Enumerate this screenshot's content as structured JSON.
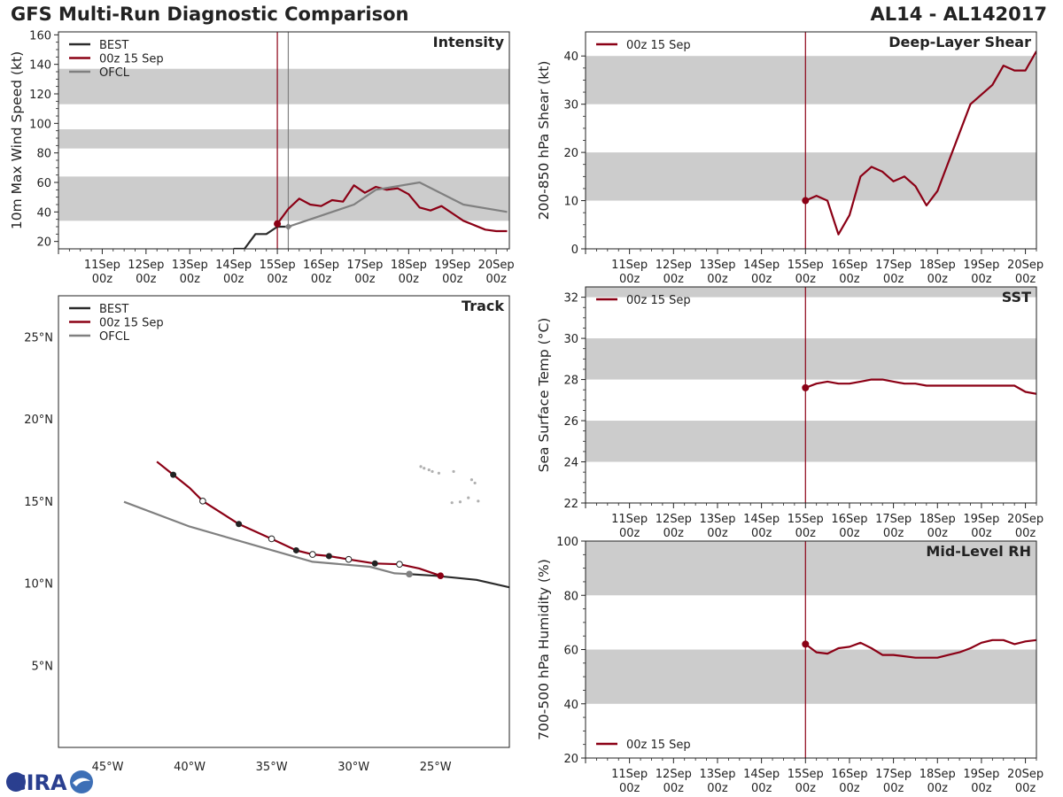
{
  "title_left": "GFS Multi-Run Diagnostic Comparison",
  "title_right": "AL14 - AL142017",
  "logo_text": "CIRA",
  "colors": {
    "best": "#2b2b2b",
    "run": "#8b0015",
    "ofcl": "#808080",
    "band": "#cccccc",
    "vline": "#8b0015",
    "vline_ofcl": "#808080"
  },
  "time_ticks": [
    {
      "day": "11Sep",
      "hour": "00z"
    },
    {
      "day": "12Sep",
      "hour": "00z"
    },
    {
      "day": "13Sep",
      "hour": "00z"
    },
    {
      "day": "14Sep",
      "hour": "00z"
    },
    {
      "day": "15Sep",
      "hour": "00z"
    },
    {
      "day": "16Sep",
      "hour": "00z"
    },
    {
      "day": "17Sep",
      "hour": "00z"
    },
    {
      "day": "18Sep",
      "hour": "00z"
    },
    {
      "day": "19Sep",
      "hour": "00z"
    },
    {
      "day": "20Sep",
      "hour": "00z"
    }
  ],
  "chart_data": [
    {
      "id": "intensity",
      "type": "line",
      "panel_title": "Intensity",
      "ylabel": "10m Max Wind Speed (kt)",
      "xlim": [
        10,
        20.3
      ],
      "ylim": [
        15,
        162
      ],
      "yticks": [
        20,
        40,
        60,
        80,
        100,
        120,
        140,
        160
      ],
      "bands": [
        [
          34,
          64
        ],
        [
          83,
          96
        ],
        [
          113,
          137
        ]
      ],
      "vlines": [
        {
          "x": 15.0,
          "color": "run"
        },
        {
          "x": 15.25,
          "color": "ofcl"
        }
      ],
      "legend": [
        {
          "label": "BEST",
          "color": "best"
        },
        {
          "label": "00z 15 Sep",
          "color": "run"
        },
        {
          "label": "OFCL",
          "color": "ofcl"
        }
      ],
      "series": [
        {
          "name": "BEST",
          "color": "best",
          "points": [
            [
              14.0,
              15
            ],
            [
              14.25,
              15
            ],
            [
              14.5,
              25
            ],
            [
              14.75,
              25
            ],
            [
              15.0,
              30
            ],
            [
              15.25,
              30
            ]
          ]
        },
        {
          "name": "00z 15 Sep",
          "color": "run",
          "points": [
            [
              15.0,
              32
            ],
            [
              15.25,
              42
            ],
            [
              15.5,
              49
            ],
            [
              15.75,
              45
            ],
            [
              16.0,
              44
            ],
            [
              16.25,
              48
            ],
            [
              16.5,
              47
            ],
            [
              16.75,
              58
            ],
            [
              17.0,
              53
            ],
            [
              17.25,
              57
            ],
            [
              17.5,
              55
            ],
            [
              17.75,
              56
            ],
            [
              18.0,
              52
            ],
            [
              18.25,
              43
            ],
            [
              18.5,
              41
            ],
            [
              18.75,
              44
            ],
            [
              19.0,
              39
            ],
            [
              19.25,
              34
            ],
            [
              19.5,
              31
            ],
            [
              19.75,
              28
            ],
            [
              20.0,
              27
            ],
            [
              20.25,
              27
            ]
          ]
        },
        {
          "name": "OFCL",
          "color": "ofcl",
          "points": [
            [
              15.25,
              30
            ],
            [
              15.75,
              35
            ],
            [
              16.75,
              45
            ],
            [
              17.25,
              55
            ],
            [
              18.25,
              60
            ],
            [
              19.25,
              45
            ],
            [
              20.25,
              40
            ]
          ]
        }
      ],
      "markers": [
        {
          "x": 15.0,
          "y": 32,
          "color": "run"
        },
        {
          "x": 15.25,
          "y": 30,
          "color": "ofcl",
          "shape": "diamond"
        }
      ]
    },
    {
      "id": "shear",
      "type": "line",
      "panel_title": "Deep-Layer Shear",
      "ylabel": "200-850 hPa Shear (kt)",
      "xlim": [
        10,
        20.25
      ],
      "ylim": [
        0,
        45
      ],
      "yticks": [
        0,
        10,
        20,
        30,
        40
      ],
      "bands": [
        [
          10,
          20
        ],
        [
          30,
          40
        ]
      ],
      "vlines": [
        {
          "x": 15.0,
          "color": "run"
        }
      ],
      "legend": [
        {
          "label": "00z 15 Sep",
          "color": "run"
        }
      ],
      "series": [
        {
          "name": "00z 15 Sep",
          "color": "run",
          "points": [
            [
              15.0,
              10
            ],
            [
              15.25,
              11
            ],
            [
              15.5,
              10
            ],
            [
              15.75,
              3
            ],
            [
              16.0,
              7
            ],
            [
              16.25,
              15
            ],
            [
              16.5,
              17
            ],
            [
              16.75,
              16
            ],
            [
              17.0,
              14
            ],
            [
              17.25,
              15
            ],
            [
              17.5,
              13
            ],
            [
              17.75,
              9
            ],
            [
              18.0,
              12
            ],
            [
              18.25,
              18
            ],
            [
              18.5,
              24
            ],
            [
              18.75,
              30
            ],
            [
              19.0,
              32
            ],
            [
              19.25,
              34
            ],
            [
              19.5,
              38
            ],
            [
              19.75,
              37
            ],
            [
              20.0,
              37
            ],
            [
              20.25,
              41
            ]
          ]
        }
      ],
      "markers": [
        {
          "x": 15.0,
          "y": 10,
          "color": "run"
        }
      ]
    },
    {
      "id": "sst",
      "type": "line",
      "panel_title": "SST",
      "ylabel": "Sea Surface Temp (°C)",
      "xlim": [
        10,
        20.25
      ],
      "ylim": [
        22,
        32.5
      ],
      "yticks": [
        22,
        24,
        26,
        28,
        30,
        32
      ],
      "bands": [
        [
          24,
          26
        ],
        [
          28,
          30
        ],
        [
          32,
          32.5
        ]
      ],
      "vlines": [
        {
          "x": 15.0,
          "color": "run"
        }
      ],
      "legend": [
        {
          "label": "00z 15 Sep",
          "color": "run"
        }
      ],
      "series": [
        {
          "name": "00z 15 Sep",
          "color": "run",
          "points": [
            [
              15.0,
              27.6
            ],
            [
              15.25,
              27.8
            ],
            [
              15.5,
              27.9
            ],
            [
              15.75,
              27.8
            ],
            [
              16.0,
              27.8
            ],
            [
              16.25,
              27.9
            ],
            [
              16.5,
              28.0
            ],
            [
              16.75,
              28.0
            ],
            [
              17.0,
              27.9
            ],
            [
              17.25,
              27.8
            ],
            [
              17.5,
              27.8
            ],
            [
              17.75,
              27.7
            ],
            [
              18.0,
              27.7
            ],
            [
              18.5,
              27.7
            ],
            [
              19.0,
              27.7
            ],
            [
              19.5,
              27.7
            ],
            [
              19.75,
              27.7
            ],
            [
              20.0,
              27.4
            ],
            [
              20.25,
              27.3
            ]
          ]
        }
      ],
      "markers": [
        {
          "x": 15.0,
          "y": 27.6,
          "color": "run"
        }
      ]
    },
    {
      "id": "rh",
      "type": "line",
      "panel_title": "Mid-Level RH",
      "ylabel": "700-500 hPa Humidity (%)",
      "xlim": [
        10,
        20.25
      ],
      "ylim": [
        20,
        100
      ],
      "yticks": [
        20,
        40,
        60,
        80,
        100
      ],
      "bands": [
        [
          40,
          60
        ],
        [
          80,
          100
        ]
      ],
      "vlines": [
        {
          "x": 15.0,
          "color": "run"
        }
      ],
      "legend": [
        {
          "label": "00z 15 Sep",
          "color": "run"
        }
      ],
      "legend_position": "bottom-left",
      "series": [
        {
          "name": "00z 15 Sep",
          "color": "run",
          "points": [
            [
              15.0,
              62
            ],
            [
              15.25,
              59
            ],
            [
              15.5,
              58.5
            ],
            [
              15.75,
              60.5
            ],
            [
              16.0,
              61
            ],
            [
              16.25,
              62.5
            ],
            [
              16.5,
              60.5
            ],
            [
              16.75,
              58
            ],
            [
              17.0,
              58
            ],
            [
              17.5,
              57
            ],
            [
              18.0,
              57
            ],
            [
              18.25,
              58
            ],
            [
              18.5,
              59
            ],
            [
              18.75,
              60.5
            ],
            [
              19.0,
              62.5
            ],
            [
              19.25,
              63.5
            ],
            [
              19.5,
              63.5
            ],
            [
              19.75,
              62
            ],
            [
              20.0,
              63
            ],
            [
              20.25,
              63.5
            ]
          ]
        }
      ],
      "markers": [
        {
          "x": 15.0,
          "y": 62,
          "color": "run"
        }
      ]
    },
    {
      "id": "track",
      "type": "scatter",
      "panel_title": "Track",
      "xlim": [
        -48,
        -20.5
      ],
      "ylim": [
        0,
        27.5
      ],
      "xticks": [
        {
          "v": -45,
          "label": "45°W"
        },
        {
          "v": -40,
          "label": "40°W"
        },
        {
          "v": -35,
          "label": "35°W"
        },
        {
          "v": -30,
          "label": "30°W"
        },
        {
          "v": -25,
          "label": "25°W"
        }
      ],
      "yticks": [
        {
          "v": 5,
          "label": "5°N"
        },
        {
          "v": 10,
          "label": "10°N"
        },
        {
          "v": 15,
          "label": "15°N"
        },
        {
          "v": 20,
          "label": "20°N"
        },
        {
          "v": 25,
          "label": "25°N"
        }
      ],
      "legend": [
        {
          "label": "BEST",
          "color": "best"
        },
        {
          "label": "00z 15 Sep",
          "color": "run"
        },
        {
          "label": "OFCL",
          "color": "ofcl"
        }
      ],
      "series": [
        {
          "name": "BEST",
          "color": "best",
          "points": [
            [
              -26.6,
              10.55
            ],
            [
              -25.0,
              10.45
            ],
            [
              -22.5,
              10.2
            ],
            [
              -20.5,
              9.75
            ]
          ]
        },
        {
          "name": "00z 15 Sep",
          "color": "run",
          "points": [
            [
              -42.0,
              17.4
            ],
            [
              -41.0,
              16.6
            ],
            [
              -40.0,
              15.8
            ],
            [
              -39.2,
              15.0
            ],
            [
              -37.0,
              13.6
            ],
            [
              -35.0,
              12.7
            ],
            [
              -33.5,
              12.0
            ],
            [
              -32.5,
              11.75
            ],
            [
              -31.5,
              11.65
            ],
            [
              -30.3,
              11.45
            ],
            [
              -28.7,
              11.2
            ],
            [
              -27.2,
              11.15
            ],
            [
              -26.0,
              10.9
            ],
            [
              -24.7,
              10.45
            ]
          ]
        },
        {
          "name": "OFCL",
          "color": "ofcl",
          "points": [
            [
              -44.0,
              14.95
            ],
            [
              -40.0,
              13.45
            ],
            [
              -36.0,
              12.3
            ],
            [
              -32.5,
              11.3
            ],
            [
              -29.0,
              11.0
            ],
            [
              -27.5,
              10.6
            ],
            [
              -26.6,
              10.55
            ]
          ]
        }
      ],
      "markers": [
        {
          "x": -41.0,
          "y": 16.6,
          "style": "filled"
        },
        {
          "x": -39.2,
          "y": 15.0,
          "style": "open"
        },
        {
          "x": -37.0,
          "y": 13.6,
          "style": "filled"
        },
        {
          "x": -35.0,
          "y": 12.7,
          "style": "open"
        },
        {
          "x": -33.5,
          "y": 12.0,
          "style": "filled"
        },
        {
          "x": -32.5,
          "y": 11.75,
          "style": "open"
        },
        {
          "x": -31.5,
          "y": 11.65,
          "style": "filled"
        },
        {
          "x": -30.3,
          "y": 11.45,
          "style": "open"
        },
        {
          "x": -28.7,
          "y": 11.2,
          "style": "filled"
        },
        {
          "x": -27.2,
          "y": 11.15,
          "style": "open"
        },
        {
          "x": -26.6,
          "y": 10.55,
          "style": "ofcl"
        },
        {
          "x": -24.7,
          "y": 10.45,
          "style": "run"
        }
      ]
    }
  ]
}
